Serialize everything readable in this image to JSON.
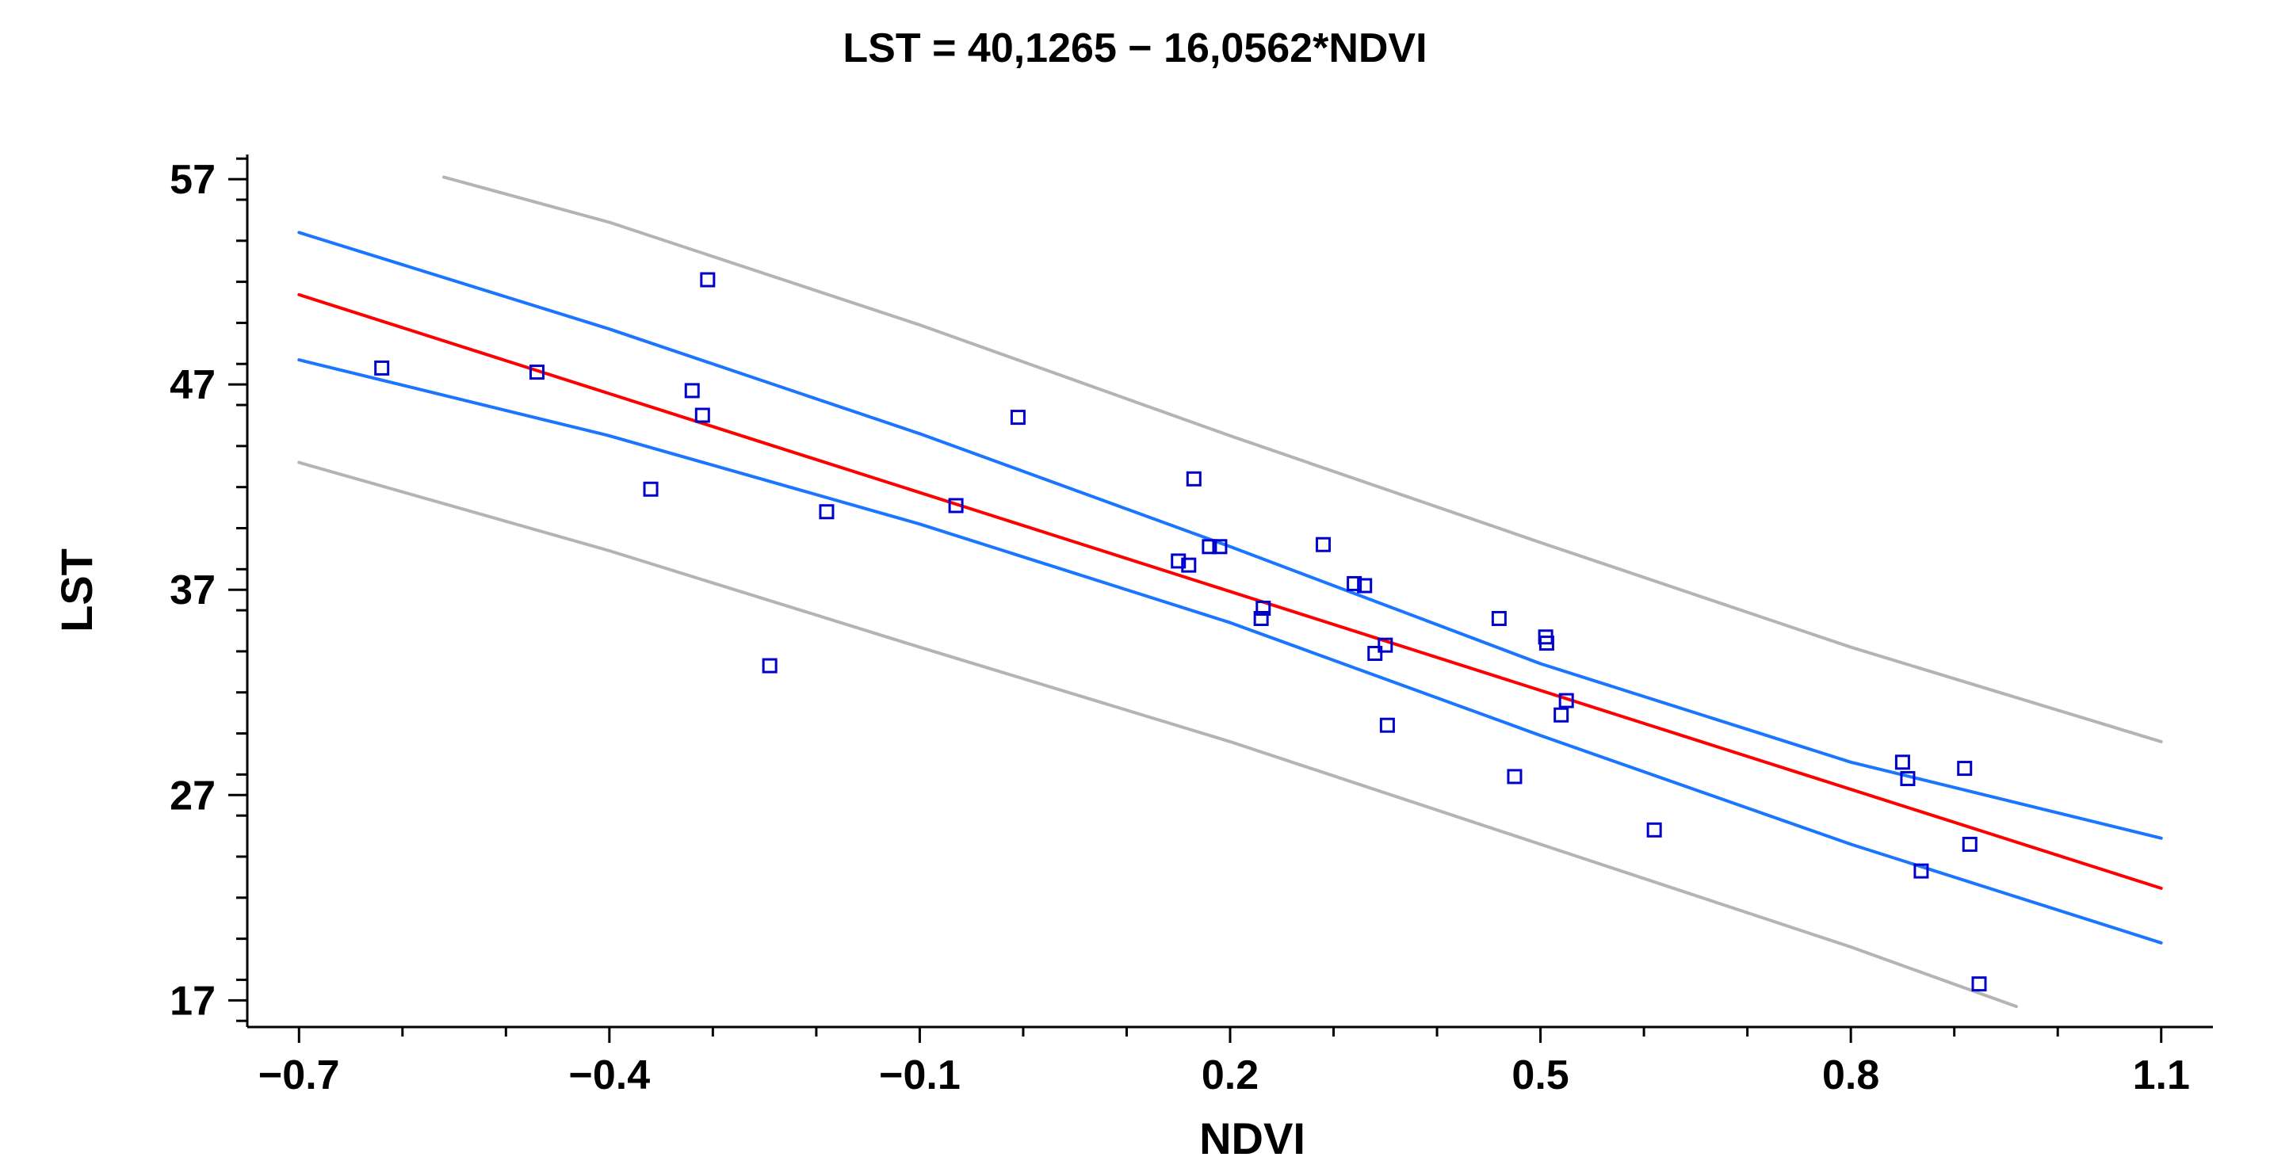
{
  "chart_data": {
    "type": "scatter",
    "title": "LST = 40,1265 − 16,0562*NDVI",
    "xlabel": "NDVI",
    "ylabel": "LST",
    "xlim": [
      -0.75,
      1.15
    ],
    "ylim": [
      15.7,
      58.2
    ],
    "x_ticks": [
      -0.7,
      -0.4,
      -0.1,
      0.2,
      0.5,
      0.8,
      1.1
    ],
    "x_tick_labels": [
      "−0.7",
      "−0.4",
      "−0.1",
      "0.2",
      "0.5",
      "0.8",
      "1.1"
    ],
    "y_ticks": [
      17,
      27,
      37,
      47,
      57
    ],
    "y_tick_labels": [
      "17",
      "27",
      "37",
      "47",
      "57"
    ],
    "regression": {
      "intercept": 40.1265,
      "slope": -16.0562
    },
    "series": [
      {
        "name": "fit",
        "kind": "line",
        "color": "#ff0000",
        "x": [
          -0.7,
          1.1
        ],
        "y": [
          51.37,
          22.46
        ]
      },
      {
        "name": "confidence-upper",
        "kind": "line",
        "color": "#1a75ff",
        "x": [
          -0.7,
          -0.4,
          -0.1,
          0.2,
          0.5,
          0.8,
          1.1
        ],
        "y": [
          54.4,
          49.7,
          44.6,
          39.1,
          33.4,
          28.6,
          24.9
        ]
      },
      {
        "name": "confidence-lower",
        "kind": "line",
        "color": "#1a75ff",
        "x": [
          -0.7,
          -0.4,
          -0.1,
          0.2,
          0.5,
          0.8,
          1.1
        ],
        "y": [
          48.2,
          44.5,
          40.2,
          35.4,
          29.9,
          24.6,
          19.8
        ]
      },
      {
        "name": "prediction-upper",
        "kind": "line",
        "color": "#b4b4b4",
        "x": [
          -0.56,
          -0.4,
          -0.1,
          0.2,
          0.5,
          0.8,
          1.1
        ],
        "y": [
          57.1,
          54.9,
          49.9,
          44.5,
          39.3,
          34.2,
          29.6
        ]
      },
      {
        "name": "prediction-lower",
        "kind": "line",
        "color": "#b4b4b4",
        "x": [
          -0.7,
          -0.4,
          -0.1,
          0.2,
          0.5,
          0.8,
          0.96
        ],
        "y": [
          43.2,
          38.9,
          34.2,
          29.6,
          24.6,
          19.6,
          16.7
        ]
      },
      {
        "name": "observations",
        "kind": "points",
        "color": "#0000cc",
        "x": [
          -0.62,
          -0.47,
          -0.36,
          -0.32,
          -0.31,
          -0.305,
          -0.245,
          -0.19,
          -0.065,
          -0.005,
          0.15,
          0.16,
          0.165,
          0.18,
          0.19,
          0.23,
          0.232,
          0.29,
          0.32,
          0.33,
          0.34,
          0.35,
          0.352,
          0.46,
          0.475,
          0.505,
          0.506,
          0.52,
          0.525,
          0.61,
          0.85,
          0.855,
          0.868,
          0.91,
          0.915,
          0.924
        ],
        "y": [
          47.8,
          47.6,
          41.9,
          46.7,
          45.5,
          52.1,
          33.3,
          40.8,
          41.1,
          45.4,
          38.4,
          38.2,
          42.4,
          39.1,
          39.1,
          35.6,
          36.1,
          39.2,
          37.3,
          37.2,
          33.9,
          34.3,
          30.4,
          35.6,
          27.9,
          34.7,
          34.4,
          30.9,
          31.6,
          25.3,
          28.6,
          27.8,
          23.3,
          28.3,
          24.6,
          17.8
        ]
      }
    ]
  }
}
